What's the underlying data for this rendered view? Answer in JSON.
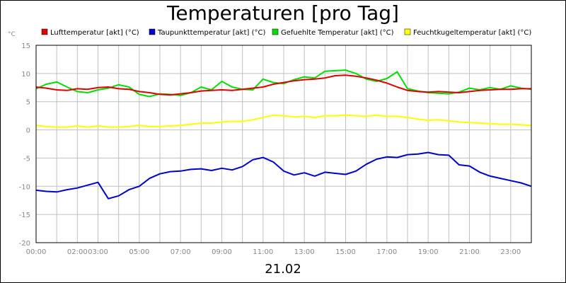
{
  "chart_data": {
    "type": "line",
    "title": "Temperaturen [pro Tag]",
    "ylabel": "°C",
    "xlabel": "21.02",
    "ylim": [
      -20,
      15
    ],
    "yticks": [
      15,
      10,
      5,
      0,
      -5,
      -10,
      -15,
      -20
    ],
    "xlim": [
      0,
      24
    ],
    "xticks": [
      {
        "label": "00:00",
        "hour": 0
      },
      {
        "label": "02:00",
        "hour": 2
      },
      {
        "label": "03:00",
        "hour": 3
      },
      {
        "label": "05:00",
        "hour": 5
      },
      {
        "label": "07:00",
        "hour": 7
      },
      {
        "label": "09:00",
        "hour": 9
      },
      {
        "label": "11:00",
        "hour": 11
      },
      {
        "label": "13:00",
        "hour": 13
      },
      {
        "label": "15:00",
        "hour": 15
      },
      {
        "label": "17:00",
        "hour": 17
      },
      {
        "label": "19:00",
        "hour": 19
      },
      {
        "label": "21:00",
        "hour": 21
      },
      {
        "label": "23:00",
        "hour": 23
      }
    ],
    "grid": true,
    "legend_position": "top",
    "x": [
      0,
      0.5,
      1,
      1.5,
      2,
      2.5,
      3,
      3.5,
      4,
      4.5,
      5,
      5.5,
      6,
      6.5,
      7,
      7.5,
      8,
      8.5,
      9,
      9.5,
      10,
      10.5,
      11,
      11.5,
      12,
      12.5,
      13,
      13.5,
      14,
      14.5,
      15,
      15.5,
      16,
      16.5,
      17,
      17.5,
      18,
      18.5,
      19,
      19.5,
      20,
      20.5,
      21,
      21.5,
      22,
      22.5,
      23,
      23.5,
      24
    ],
    "series": [
      {
        "name": "Lufttemperatur [akt] (°C)",
        "color": "#dd0000",
        "values": [
          7.6,
          7.4,
          7.1,
          7.0,
          7.3,
          7.2,
          7.5,
          7.6,
          7.3,
          7.2,
          6.8,
          6.6,
          6.3,
          6.2,
          6.4,
          6.6,
          6.9,
          7.0,
          7.1,
          7.0,
          7.2,
          7.4,
          7.6,
          8.1,
          8.4,
          8.7,
          8.9,
          9.0,
          9.2,
          9.6,
          9.7,
          9.5,
          9.2,
          8.8,
          8.3,
          7.6,
          7.0,
          6.8,
          6.7,
          6.8,
          6.7,
          6.6,
          6.8,
          7.0,
          7.1,
          7.2,
          7.2,
          7.3,
          7.3
        ]
      },
      {
        "name": "Taupunkttemperatur [akt] (°C)",
        "color": "#0000cc",
        "values": [
          -10.7,
          -10.9,
          -11.0,
          -10.6,
          -10.3,
          -9.8,
          -9.3,
          -12.2,
          -11.7,
          -10.6,
          -10.0,
          -8.6,
          -7.8,
          -7.4,
          -7.3,
          -7.0,
          -6.9,
          -7.2,
          -6.8,
          -7.1,
          -6.5,
          -5.3,
          -4.9,
          -5.7,
          -7.3,
          -8.0,
          -7.6,
          -8.2,
          -7.5,
          -7.7,
          -7.9,
          -7.3,
          -6.1,
          -5.2,
          -4.8,
          -4.9,
          -4.4,
          -4.3,
          -4.0,
          -4.4,
          -4.5,
          -6.2,
          -6.4,
          -7.5,
          -8.2,
          -8.6,
          -9.0,
          -9.4,
          -10.0
        ]
      },
      {
        "name": "Gefuehlte Temperatur [akt] (°C)",
        "color": "#00dd00",
        "values": [
          7.3,
          8.1,
          8.5,
          7.6,
          6.8,
          6.6,
          7.1,
          7.4,
          8.0,
          7.6,
          6.3,
          5.9,
          6.4,
          6.3,
          6.1,
          6.6,
          7.6,
          7.1,
          8.6,
          7.6,
          7.2,
          7.1,
          9.0,
          8.4,
          8.2,
          8.9,
          9.4,
          9.2,
          10.4,
          10.5,
          10.6,
          10.0,
          9.0,
          8.6,
          9.1,
          10.3,
          7.3,
          6.9,
          6.6,
          6.5,
          6.4,
          6.7,
          7.4,
          7.1,
          7.5,
          7.2,
          7.8,
          7.4,
          7.2
        ]
      },
      {
        "name": "Feuchtkugeltemperatur [akt] (°C)",
        "color": "#ffff00",
        "values": [
          0.8,
          0.6,
          0.5,
          0.5,
          0.7,
          0.5,
          0.7,
          0.5,
          0.5,
          0.6,
          0.8,
          0.6,
          0.6,
          0.7,
          0.8,
          1.0,
          1.2,
          1.2,
          1.4,
          1.5,
          1.5,
          1.8,
          2.2,
          2.6,
          2.5,
          2.3,
          2.4,
          2.2,
          2.5,
          2.5,
          2.6,
          2.5,
          2.4,
          2.6,
          2.4,
          2.4,
          2.2,
          1.9,
          1.7,
          1.8,
          1.6,
          1.4,
          1.3,
          1.2,
          1.1,
          1.0,
          1.0,
          0.9,
          0.8
        ]
      }
    ]
  }
}
